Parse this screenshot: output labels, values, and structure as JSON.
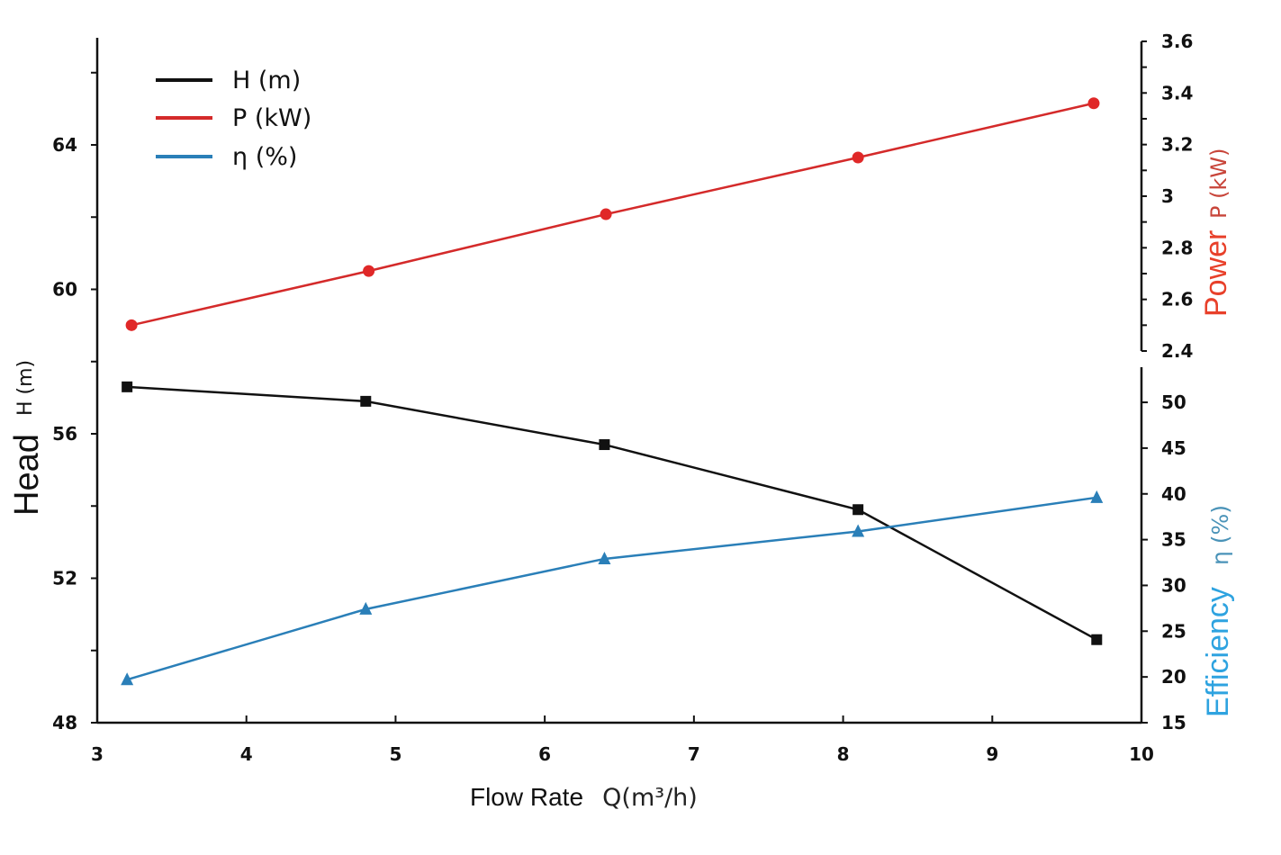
{
  "chart_data": {
    "type": "line",
    "xlabel": "Flow Rate",
    "xlabel_unit": "Q(m³/h)",
    "xlim": [
      3,
      10
    ],
    "x_ticks": [
      "3",
      "4",
      "5",
      "6",
      "7",
      "8",
      "9",
      "10"
    ],
    "y_left": {
      "label": "Head",
      "unit": "H  (m)",
      "lim": [
        48,
        67
      ],
      "ticks": [
        "48",
        "52",
        "56",
        "60",
        "64"
      ],
      "minor_step": 2
    },
    "y_right_power": {
      "label": "Power",
      "unit": "P (kW)",
      "lim": [
        2.4,
        3.6
      ],
      "ticks": [
        "2.4",
        "2.6",
        "2.8",
        "3",
        "3.2",
        "3.4",
        "3.6"
      ],
      "color": "#e8402a"
    },
    "y_right_eff": {
      "label": "Efficiency",
      "unit": "η (%)",
      "lim": [
        15,
        53
      ],
      "ticks": [
        "15",
        "20",
        "25",
        "30",
        "35",
        "40",
        "45",
        "50"
      ],
      "color": "#2ea3e0"
    },
    "legend": {
      "placement": "top-left",
      "entries": [
        "H  (m)",
        "P (kW)",
        "η (%)"
      ]
    },
    "grid": false,
    "series": [
      {
        "name": "H  (m)",
        "axis": "left",
        "color": "#111111",
        "marker": "square",
        "x": [
          3.2,
          4.8,
          6.4,
          8.1,
          9.7
        ],
        "y": [
          57.3,
          56.9,
          55.7,
          53.9,
          50.3
        ]
      },
      {
        "name": "P (kW)",
        "axis": "power",
        "color": "#d42a2a",
        "marker": "circle",
        "x": [
          3.23,
          4.82,
          6.41,
          8.1,
          9.68
        ],
        "y": [
          2.5,
          2.71,
          2.93,
          3.15,
          3.36
        ]
      },
      {
        "name": "η (%)",
        "axis": "eff",
        "color": "#2a7fb8",
        "marker": "triangle",
        "x": [
          3.2,
          4.8,
          6.4,
          8.1,
          9.7
        ],
        "y": [
          19.7,
          27.4,
          32.9,
          35.9,
          39.6
        ]
      }
    ]
  }
}
